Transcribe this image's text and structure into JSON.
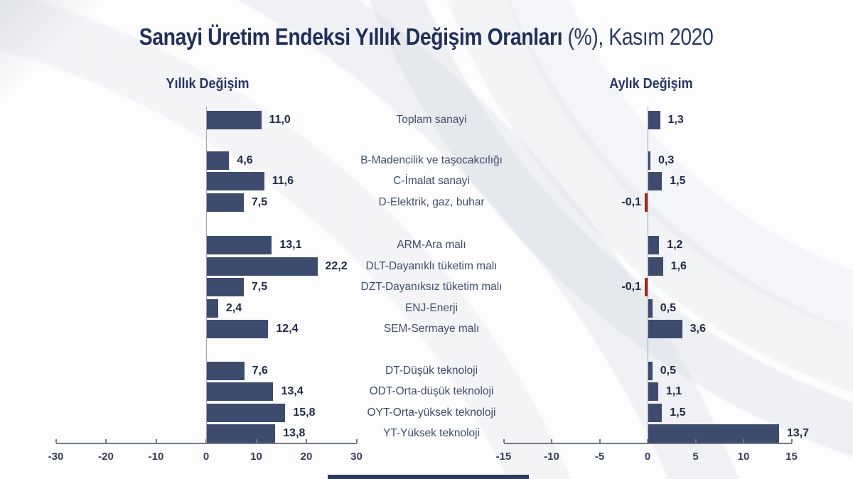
{
  "title": {
    "main": "Sanayi Üretim Endeksi Yıllık Değişim Oranları",
    "suffix": " (%), Kasım 2020"
  },
  "colors": {
    "bar_positive": "#3d4b6d",
    "bar_negative": "#a63022",
    "title_text": "#20305a",
    "axis": "#6f7987",
    "footer_bar": "#2c3a5e"
  },
  "categories": [
    "Toplam sanayi",
    "B-Madencilik ve taşocakcılığı",
    "C-İmalat sanayi",
    "D-Elektrik, gaz, buhar",
    "ARM-Ara malı",
    "DLT-Dayanıklı tüketim malı",
    "DZT-Dayanıksız tüketim malı",
    "ENJ-Enerji",
    "SEM-Sermaye malı",
    "DT-Düşük teknoloji",
    "ODT-Orta-düşük teknoloji",
    "OYT-Orta-yüksek teknoloji",
    "YT-Yüksek teknoloji"
  ],
  "chart_data": [
    {
      "type": "bar",
      "orientation": "horizontal",
      "title": "Yıllık Değişim",
      "categories": [
        "Toplam sanayi",
        "B-Madencilik ve taşocakcılığı",
        "C-İmalat sanayi",
        "D-Elektrik, gaz, buhar",
        "ARM-Ara malı",
        "DLT-Dayanıklı tüketim malı",
        "DZT-Dayanıksız tüketim malı",
        "ENJ-Enerji",
        "SEM-Sermaye malı",
        "DT-Düşük teknoloji",
        "ODT-Orta-düşük teknoloji",
        "OYT-Orta-yüksek teknoloji",
        "YT-Yüksek teknoloji"
      ],
      "values": [
        11.0,
        4.6,
        11.6,
        7.5,
        13.1,
        22.2,
        7.5,
        2.4,
        12.4,
        7.6,
        13.4,
        15.8,
        13.8
      ],
      "value_labels": [
        "11,0",
        "4,6",
        "11,6",
        "7,5",
        "13,1",
        "22,2",
        "7,5",
        "2,4",
        "12,4",
        "7,6",
        "13,4",
        "15,8",
        "13,8"
      ],
      "xlim": [
        -30,
        30
      ],
      "ticks": [
        -30,
        -20,
        -10,
        0,
        10,
        20,
        30
      ],
      "tick_labels": [
        "-30",
        "-20",
        "-10",
        "0",
        "10",
        "20",
        "30"
      ],
      "grid": false,
      "groups": [
        [
          0
        ],
        [
          1,
          2,
          3
        ],
        [
          4,
          5,
          6,
          7,
          8
        ],
        [
          9,
          10,
          11,
          12
        ]
      ]
    },
    {
      "type": "bar",
      "orientation": "horizontal",
      "title": "Aylık Değişim",
      "categories": [
        "Toplam sanayi",
        "B-Madencilik ve taşocakcılığı",
        "C-İmalat sanayi",
        "D-Elektrik, gaz, buhar",
        "ARM-Ara malı",
        "DLT-Dayanıklı tüketim malı",
        "DZT-Dayanıksız tüketim malı",
        "ENJ-Enerji",
        "SEM-Sermaye malı",
        "DT-Düşük teknoloji",
        "ODT-Orta-düşük teknoloji",
        "OYT-Orta-yüksek teknoloji",
        "YT-Yüksek teknoloji"
      ],
      "values": [
        1.3,
        0.3,
        1.5,
        -0.1,
        1.2,
        1.6,
        -0.1,
        0.5,
        3.6,
        0.5,
        1.1,
        1.5,
        13.7
      ],
      "value_labels": [
        "1,3",
        "0,3",
        "1,5",
        "-0,1",
        "1,2",
        "1,6",
        "-0,1",
        "0,5",
        "3,6",
        "0,5",
        "1,1",
        "1,5",
        "13,7"
      ],
      "xlim": [
        -15,
        15
      ],
      "ticks": [
        -15,
        -10,
        -5,
        0,
        5,
        10,
        15
      ],
      "tick_labels": [
        "-15",
        "-10",
        "-5",
        "0",
        "5",
        "10",
        "15"
      ],
      "grid": false,
      "groups": [
        [
          0
        ],
        [
          1,
          2,
          3
        ],
        [
          4,
          5,
          6,
          7,
          8
        ],
        [
          9,
          10,
          11,
          12
        ]
      ]
    }
  ]
}
